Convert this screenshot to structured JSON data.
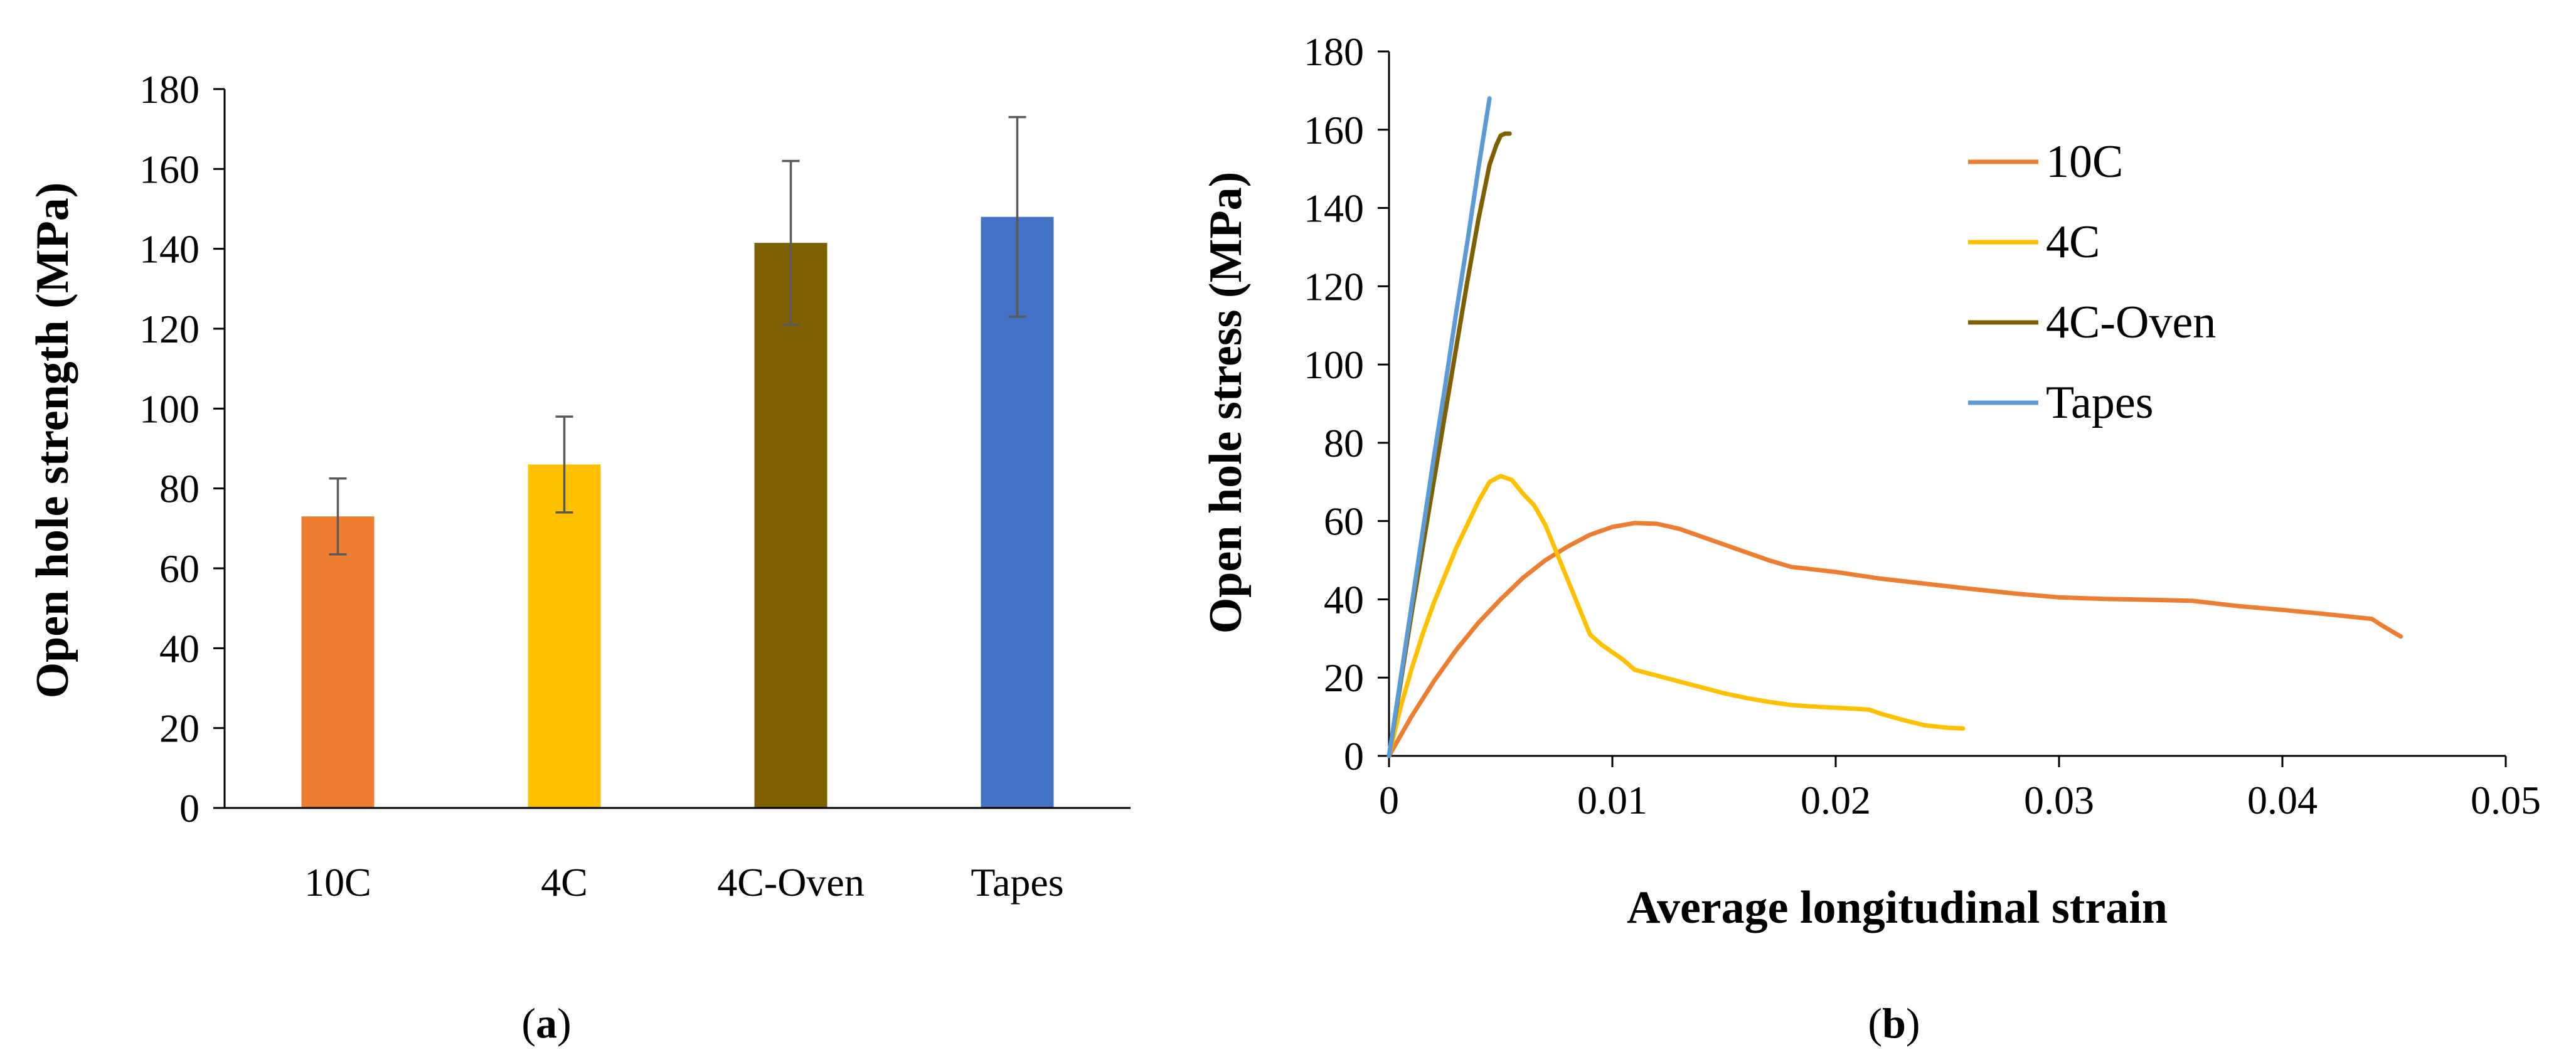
{
  "panel_a": {
    "label_open": "(",
    "label_letter": "a",
    "label_close": ")"
  },
  "panel_b": {
    "label_open": "(",
    "label_letter": "b",
    "label_close": ")"
  },
  "chart_data": [
    {
      "type": "bar",
      "title": "",
      "xlabel": "",
      "ylabel": "Open hole strength (MPa)",
      "categories": [
        "10C",
        "4C",
        "4C-Oven",
        "Tapes"
      ],
      "values": [
        73,
        86,
        141.5,
        148
      ],
      "error_bars": [
        9.5,
        12,
        20.5,
        25
      ],
      "colors": [
        "#ED7D31",
        "#FFC000",
        "#7F6000",
        "#4472C4"
      ],
      "ylim": [
        0,
        180
      ],
      "yticks": [
        0,
        20,
        40,
        60,
        80,
        100,
        120,
        140,
        160,
        180
      ],
      "ytick_labels": [
        "0",
        "20",
        "40",
        "60",
        "80",
        "100",
        "120",
        "140",
        "160",
        "180"
      ],
      "grid": false
    },
    {
      "type": "line",
      "title": "",
      "xlabel": "Average longitudinal strain",
      "ylabel": "Open hole stress (MPa)",
      "xlim": [
        0,
        0.05
      ],
      "ylim": [
        0,
        180
      ],
      "xticks": [
        0,
        0.01,
        0.02,
        0.03,
        0.04,
        0.05
      ],
      "xtick_labels": [
        "0",
        "0.01",
        "0.02",
        "0.03",
        "0.04",
        "0.05"
      ],
      "yticks": [
        0,
        20,
        40,
        60,
        80,
        100,
        120,
        140,
        160,
        180
      ],
      "ytick_labels": [
        "0",
        "20",
        "40",
        "60",
        "80",
        "100",
        "120",
        "140",
        "160",
        "180"
      ],
      "legend_position": "top-right",
      "grid": false,
      "series": [
        {
          "name": "10C",
          "color": "#ED7D31",
          "x": [
            0,
            0.001,
            0.002,
            0.003,
            0.004,
            0.005,
            0.006,
            0.007,
            0.008,
            0.009,
            0.01,
            0.011,
            0.012,
            0.013,
            0.014,
            0.015,
            0.016,
            0.017,
            0.018,
            0.02,
            0.022,
            0.024,
            0.026,
            0.028,
            0.03,
            0.032,
            0.034,
            0.036,
            0.038,
            0.04,
            0.042,
            0.044,
            0.0445,
            0.045,
            0.0453
          ],
          "y": [
            0,
            10,
            19,
            27,
            34,
            40,
            45.5,
            50,
            53.5,
            56.5,
            58.5,
            59.5,
            59.3,
            58,
            56,
            54,
            52,
            50,
            48.3,
            47,
            45.3,
            44,
            42.7,
            41.5,
            40.5,
            40.1,
            39.9,
            39.6,
            38.3,
            37.3,
            36.2,
            35,
            33.2,
            31.5,
            30.5
          ]
        },
        {
          "name": "4C",
          "color": "#FFC000",
          "x": [
            0,
            0.0005,
            0.001,
            0.0015,
            0.002,
            0.0025,
            0.003,
            0.0035,
            0.004,
            0.0045,
            0.005,
            0.0055,
            0.006,
            0.0065,
            0.007,
            0.0075,
            0.008,
            0.0085,
            0.009,
            0.0095,
            0.01,
            0.0105,
            0.011,
            0.012,
            0.013,
            0.014,
            0.015,
            0.016,
            0.017,
            0.018,
            0.019,
            0.02,
            0.021,
            0.0215,
            0.022,
            0.023,
            0.024,
            0.025,
            0.0257
          ],
          "y": [
            0,
            12,
            22,
            31,
            39,
            46,
            53,
            59,
            65,
            70,
            71.5,
            70.5,
            67,
            64,
            59,
            52,
            45,
            38,
            31,
            28.5,
            26.5,
            24.5,
            22,
            20.5,
            19,
            17.5,
            16,
            14.8,
            13.8,
            13,
            12.6,
            12.3,
            12,
            11.8,
            10.8,
            9.2,
            7.8,
            7.2,
            7.0
          ]
        },
        {
          "name": "4C-Oven",
          "color": "#7F6000",
          "x": [
            0,
            0.0005,
            0.001,
            0.0015,
            0.002,
            0.0025,
            0.003,
            0.0035,
            0.004,
            0.0045,
            0.0048,
            0.005,
            0.0052,
            0.0054
          ],
          "y": [
            0,
            18,
            36,
            53,
            70,
            87,
            104,
            121,
            137,
            151,
            156,
            158.5,
            159,
            159
          ]
        },
        {
          "name": "Tapes",
          "color": "#5B9BD5",
          "x": [
            0,
            0.0005,
            0.001,
            0.0015,
            0.002,
            0.0025,
            0.003,
            0.0035,
            0.004,
            0.0045
          ],
          "y": [
            0,
            19,
            38,
            57,
            76,
            94,
            113,
            131,
            150,
            168
          ]
        }
      ]
    }
  ]
}
